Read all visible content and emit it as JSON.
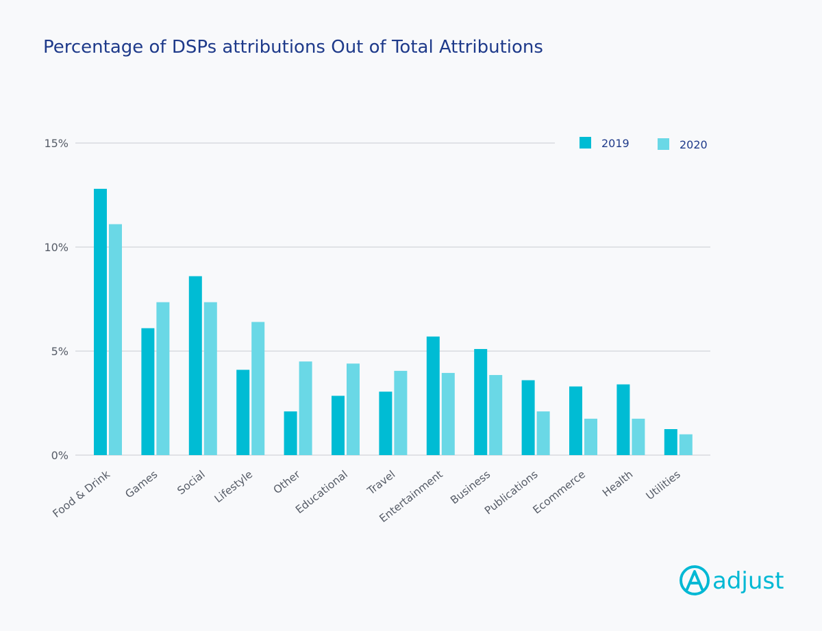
{
  "chart_data": {
    "type": "bar",
    "title": "Percentage of DSPs attributions Out of Total Attributions",
    "categories": [
      "Food & Drink",
      "Games",
      "Social",
      "Lifestyle",
      "Other",
      "Educational",
      "Travel",
      "Entertainment",
      "Business",
      "Publications",
      "Ecommerce",
      "Health",
      "Utilities"
    ],
    "series": [
      {
        "name": "2019",
        "color": "#00bcd4",
        "values": [
          12.8,
          6.1,
          8.6,
          4.1,
          2.1,
          2.85,
          3.05,
          5.7,
          5.1,
          3.6,
          3.3,
          3.4,
          1.25
        ]
      },
      {
        "name": "2020",
        "color": "#6ad8e6",
        "values": [
          11.1,
          7.35,
          7.35,
          6.4,
          4.5,
          4.4,
          4.05,
          3.95,
          3.85,
          2.1,
          1.75,
          1.75,
          1.0
        ]
      }
    ],
    "yticks": [
      "0%",
      "5%",
      "10%",
      "15%"
    ],
    "ylim": [
      0,
      15
    ],
    "grid": true,
    "legend_position": "top-right",
    "xlabel": "",
    "ylabel": ""
  },
  "brand": {
    "logo_text": "adjust",
    "logo_color": "#00b8d4",
    "logo_icon": "adjust-logo-icon"
  }
}
